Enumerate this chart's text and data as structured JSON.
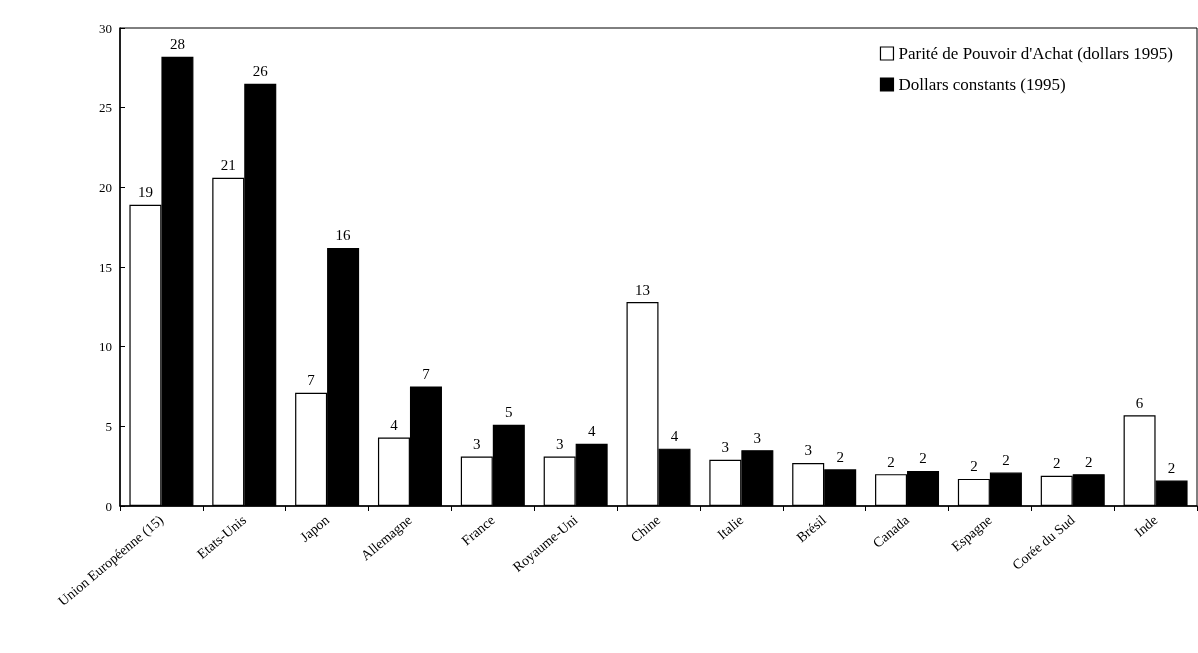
{
  "chart_data": {
    "type": "bar",
    "categories": [
      "Union Européenne (15)",
      "Etats-Unis",
      "Japon",
      "Allemagne",
      "France",
      "Royaume-Uni",
      "Chine",
      "Italie",
      "Brésil",
      "Canada",
      "Espagne",
      "Corée du Sud",
      "Inde"
    ],
    "series": [
      {
        "name": "Parité de Pouvoir d'Achat (dollars 1995)",
        "color": "#ffffff",
        "values": [
          18.9,
          20.6,
          7.1,
          4.3,
          3.1,
          3.1,
          12.8,
          2.9,
          2.7,
          2.0,
          1.7,
          1.9,
          5.7
        ],
        "value_labels": [
          "19",
          "21",
          "7",
          "4",
          "3",
          "3",
          "13",
          "3",
          "3",
          "2",
          "2",
          "2",
          "6"
        ]
      },
      {
        "name": "Dollars constants (1995)",
        "color": "#000000",
        "values": [
          28.2,
          26.5,
          16.2,
          7.5,
          5.1,
          3.9,
          3.6,
          3.5,
          2.3,
          2.2,
          2.1,
          2.0,
          1.6
        ],
        "value_labels": [
          "28",
          "26",
          "16",
          "7",
          "5",
          "4",
          "4",
          "3",
          "2",
          "2",
          "2",
          "2",
          "2"
        ]
      }
    ],
    "ylim": [
      0,
      30
    ],
    "yticks": [
      0,
      5,
      10,
      15,
      20,
      25,
      30
    ],
    "grid": false,
    "legend": "top right"
  }
}
